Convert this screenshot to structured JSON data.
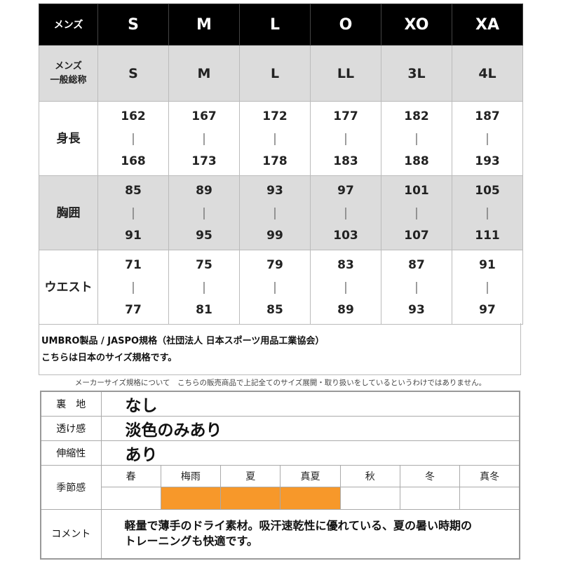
{
  "size_table": {
    "header": {
      "label": "メンズ",
      "sizes": [
        "S",
        "M",
        "L",
        "O",
        "XO",
        "XA"
      ]
    },
    "general": {
      "label_line1": "メンズ",
      "label_line2": "一般総称",
      "sizes": [
        "S",
        "M",
        "L",
        "LL",
        "3L",
        "4L"
      ]
    },
    "rows": [
      {
        "label": "身長",
        "from": [
          "162",
          "167",
          "172",
          "177",
          "182",
          "187"
        ],
        "to": [
          "168",
          "173",
          "178",
          "183",
          "188",
          "193"
        ]
      },
      {
        "label": "胸囲",
        "from": [
          "85",
          "89",
          "93",
          "97",
          "101",
          "105"
        ],
        "to": [
          "91",
          "95",
          "99",
          "103",
          "107",
          "111"
        ]
      },
      {
        "label": "ウエスト",
        "from": [
          "71",
          "75",
          "79",
          "83",
          "87",
          "91"
        ],
        "to": [
          "77",
          "81",
          "85",
          "89",
          "93",
          "97"
        ]
      }
    ],
    "range_sep": "|"
  },
  "note": {
    "line1": "UMBRO製品 / JASPO規格（社団法人 日本スポーツ用品工業協会）",
    "line2": "こちらは日本のサイズ規格です。"
  },
  "disclaimer": "メーカーサイズ規格について　こちらの販売商品で上記全てのサイズ展開・取り扱いをしているというわけではありません。",
  "spec": {
    "lining": {
      "label": "裏　地",
      "value": "なし"
    },
    "sheer": {
      "label": "透け感",
      "value": "淡色のみあり"
    },
    "stretch": {
      "label": "伸縮性",
      "value": "あり"
    },
    "season": {
      "label": "季節感",
      "items": [
        "春",
        "梅雨",
        "夏",
        "真夏",
        "秋",
        "冬",
        "真冬"
      ],
      "active": [
        false,
        true,
        true,
        true,
        false,
        false,
        false
      ],
      "active_color": "#f7982a"
    },
    "comment": {
      "label": "コメント",
      "line1": "軽量で薄手のドライ素材。吸汗速乾性に優れている、夏の暑い時期の",
      "line2": "トレーニングも快適です。"
    }
  }
}
